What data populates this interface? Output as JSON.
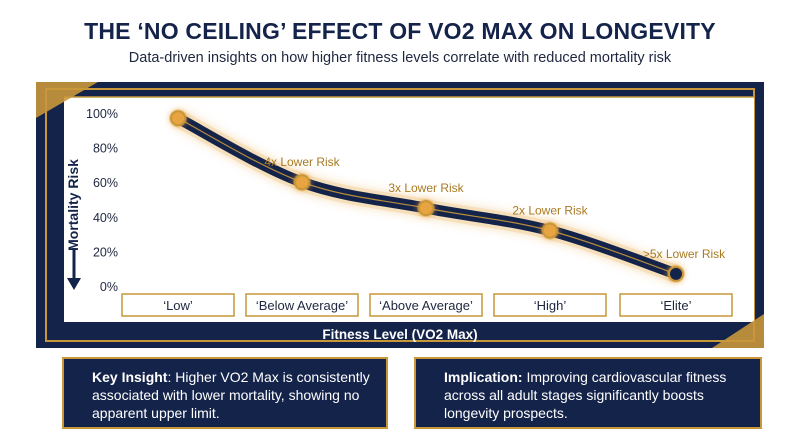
{
  "title": "THE ‘NO CEILING’ EFFECT OF VO2 MAX ON LONGEVITY",
  "subtitle": "Data-driven insights on how higher fitness levels correlate with reduced mortality risk",
  "colors": {
    "navy": "#14234a",
    "gold": "#c8973a",
    "point": "#e8a440"
  },
  "chart_data": {
    "type": "line",
    "categories": [
      "‘Low’",
      "‘Below Average’",
      "‘Above Average’",
      "‘High’",
      "‘Elite’"
    ],
    "ylabel": "Mortality Risk",
    "xlabel": "Fitness Level (VO2 Max)",
    "y_ticks": [
      "0%",
      "20%",
      "40%",
      "60%",
      "80%",
      "100%"
    ],
    "ylim": [
      0,
      100
    ],
    "y_direction_icon": "down-arrow-icon",
    "values": [
      97,
      60,
      45,
      32,
      7
    ],
    "point_labels": [
      "",
      "4x Lower Risk",
      "3x Lower Risk",
      "2x Lower Risk",
      ">5x Lower Risk"
    ],
    "grid": false
  },
  "callouts": {
    "left": {
      "bold": "Key Insight",
      "text": ": Higher VO2 Max is consistently associated with lower mortality, showing no apparent upper limit."
    },
    "right": {
      "bold": "Implication:",
      "text": " Improving cardiovascular fitness across all adult stages significantly boosts longevity prospects."
    }
  }
}
